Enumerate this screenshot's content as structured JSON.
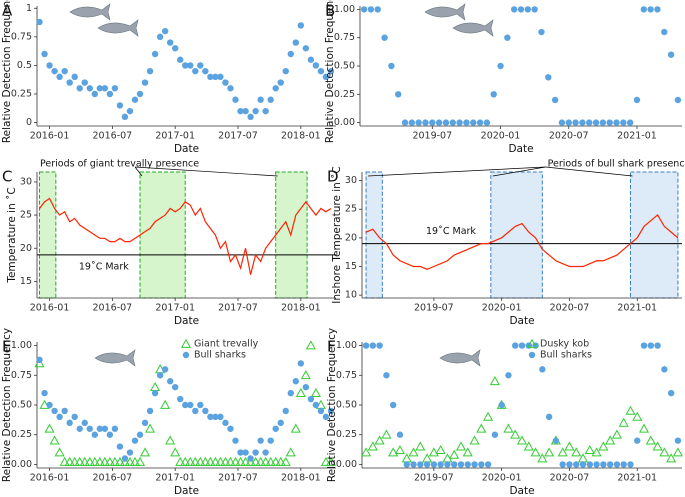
{
  "chart_data": [
    {
      "type": "scatter",
      "panel_label": "A",
      "x_label": "Date",
      "y_label": "Relative Detection Frequency",
      "color": "#5ba3e0",
      "marker": "circle",
      "x": [
        2015.92,
        2015.96,
        2016.0,
        2016.04,
        2016.08,
        2016.12,
        2016.16,
        2016.2,
        2016.24,
        2016.28,
        2016.32,
        2016.36,
        2016.4,
        2016.44,
        2016.48,
        2016.52,
        2016.56,
        2016.6,
        2016.64,
        2016.68,
        2016.72,
        2016.76,
        2016.8,
        2016.84,
        2016.88,
        2016.92,
        2016.96,
        2017.0,
        2017.04,
        2017.08,
        2017.12,
        2017.16,
        2017.2,
        2017.24,
        2017.28,
        2017.32,
        2017.36,
        2017.4,
        2017.44,
        2017.48,
        2017.52,
        2017.56,
        2017.6,
        2017.64,
        2017.68,
        2017.72,
        2017.76,
        2017.8,
        2017.84,
        2017.88,
        2017.92,
        2017.96,
        2018.0,
        2018.04,
        2018.08,
        2018.12,
        2018.16,
        2018.2,
        2018.24
      ],
      "values": [
        0.88,
        0.6,
        0.5,
        0.45,
        0.4,
        0.45,
        0.35,
        0.4,
        0.3,
        0.35,
        0.3,
        0.25,
        0.3,
        0.3,
        0.25,
        0.3,
        0.15,
        0.05,
        0.1,
        0.2,
        0.25,
        0.35,
        0.45,
        0.6,
        0.75,
        0.8,
        0.7,
        0.65,
        0.55,
        0.5,
        0.5,
        0.45,
        0.5,
        0.45,
        0.4,
        0.4,
        0.4,
        0.35,
        0.3,
        0.2,
        0.1,
        0.1,
        0.05,
        0.1,
        0.2,
        0.1,
        0.2,
        0.3,
        0.35,
        0.45,
        0.6,
        0.7,
        0.85,
        0.65,
        0.55,
        0.5,
        0.45,
        0.4,
        0.45
      ],
      "xlim": [
        2015.9,
        2018.28
      ],
      "xticks": [
        {
          "value": 2016.0,
          "label": "2016-01"
        },
        {
          "value": 2016.5,
          "label": "2016-07"
        },
        {
          "value": 2017.0,
          "label": "2017-01"
        },
        {
          "value": 2017.5,
          "label": "2017-07"
        },
        {
          "value": 2018.0,
          "label": "2018-01"
        }
      ],
      "ylim": [
        -0.03,
        1.02
      ],
      "yticks": [
        0,
        0.25,
        0.5,
        0.75,
        1
      ]
    },
    {
      "type": "scatter",
      "panel_label": "B",
      "x_label": "Date",
      "y_label": "Relative Detection Frequency",
      "color": "#5ba3e0",
      "marker": "circle",
      "x": [
        2019.0,
        2019.05,
        2019.1,
        2019.15,
        2019.2,
        2019.25,
        2019.3,
        2019.35,
        2019.4,
        2019.45,
        2019.5,
        2019.55,
        2019.6,
        2019.65,
        2019.7,
        2019.75,
        2019.8,
        2019.85,
        2019.9,
        2019.95,
        2020.0,
        2020.05,
        2020.1,
        2020.15,
        2020.2,
        2020.25,
        2020.3,
        2020.35,
        2020.4,
        2020.45,
        2020.5,
        2020.55,
        2020.6,
        2020.65,
        2020.7,
        2020.75,
        2020.8,
        2020.85,
        2020.9,
        2020.95,
        2021.0,
        2021.05,
        2021.1,
        2021.15,
        2021.2,
        2021.25,
        2021.3
      ],
      "values": [
        1,
        1,
        1,
        0.75,
        0.5,
        0.25,
        0,
        0,
        0,
        0,
        0,
        0,
        0,
        0,
        0,
        0,
        0,
        0,
        0,
        0.25,
        0.5,
        0.75,
        1,
        1,
        1,
        1,
        0.8,
        0.4,
        0.2,
        0,
        0,
        0,
        0,
        0,
        0,
        0,
        0,
        0,
        0,
        0,
        0.2,
        1,
        1,
        1,
        0.8,
        0.6,
        0.2
      ],
      "xlim": [
        2018.97,
        2021.33
      ],
      "xticks": [
        {
          "value": 2019.5,
          "label": "2019-07"
        },
        {
          "value": 2020.0,
          "label": "2020-01"
        },
        {
          "value": 2020.5,
          "label": "2020-07"
        },
        {
          "value": 2021.0,
          "label": "2021-01"
        }
      ],
      "ylim": [
        -0.03,
        1.03
      ],
      "yticks": [
        {
          "value": 0,
          "label": "0.00"
        },
        0.25,
        {
          "value": 0.5,
          "label": "0.50"
        },
        0.75,
        {
          "value": 1,
          "label": "1.00"
        }
      ]
    },
    {
      "type": "line",
      "panel_label": "C",
      "x_label": "Date",
      "y_label": "Temperature in ˚C",
      "color": "#ff2200",
      "annotations": [
        "Periods of giant trevally presence",
        "19˚C Mark"
      ],
      "spans": [
        [
          2015.92,
          2016.05
        ],
        [
          2016.72,
          2017.08
        ],
        [
          2017.8,
          2018.05
        ]
      ],
      "span_color": "#d6f5cc",
      "span_edge": "#22aa22",
      "hline": 19,
      "x": [
        2015.92,
        2015.96,
        2016.0,
        2016.04,
        2016.08,
        2016.12,
        2016.16,
        2016.2,
        2016.24,
        2016.28,
        2016.32,
        2016.36,
        2016.4,
        2016.44,
        2016.48,
        2016.52,
        2016.56,
        2016.6,
        2016.64,
        2016.68,
        2016.72,
        2016.76,
        2016.8,
        2016.84,
        2016.88,
        2016.92,
        2016.96,
        2017.0,
        2017.04,
        2017.08,
        2017.12,
        2017.16,
        2017.2,
        2017.24,
        2017.28,
        2017.32,
        2017.36,
        2017.4,
        2017.44,
        2017.48,
        2017.52,
        2017.56,
        2017.6,
        2017.64,
        2017.68,
        2017.72,
        2017.76,
        2017.8,
        2017.84,
        2017.88,
        2017.92,
        2017.96,
        2018.0,
        2018.04,
        2018.08,
        2018.12,
        2018.16,
        2018.2,
        2018.24
      ],
      "values": [
        26,
        27,
        27.5,
        26,
        25,
        25.5,
        24,
        24.5,
        23.5,
        23,
        22.5,
        22,
        21.5,
        21.5,
        21,
        21,
        21.5,
        21,
        21,
        21.5,
        22,
        22.5,
        23,
        24,
        24.5,
        25,
        26,
        25.5,
        26,
        27,
        26.5,
        25,
        26,
        24,
        23,
        22,
        20,
        21,
        18,
        19,
        17,
        20,
        16,
        19,
        18,
        20,
        21,
        22,
        23,
        24,
        22,
        25,
        26,
        27,
        26,
        25,
        26,
        25.5,
        26
      ],
      "xlim": [
        2015.9,
        2018.28
      ],
      "xticks": [
        {
          "value": 2016.0,
          "label": "2016-01"
        },
        {
          "value": 2016.5,
          "label": "2016-07"
        },
        {
          "value": 2017.0,
          "label": "2017-01"
        },
        {
          "value": 2017.5,
          "label": "2017-07"
        },
        {
          "value": 2018.0,
          "label": "2018-01"
        }
      ],
      "ylim": [
        12.5,
        31.5
      ],
      "yticks": [
        15,
        20,
        25,
        30
      ]
    },
    {
      "type": "line",
      "panel_label": "D",
      "x_label": "Date",
      "y_label": "Inshore Temperature in ˚C",
      "color": "#ff2200",
      "annotations": [
        "Periods of bull shark presence",
        "19˚C Mark"
      ],
      "spans": [
        [
          2019.0,
          2019.12
        ],
        [
          2019.92,
          2020.3
        ],
        [
          2020.95,
          2021.3
        ]
      ],
      "span_color": "#dcebf7",
      "span_edge": "#3a7fc0",
      "hline": 19,
      "x": [
        2019.0,
        2019.05,
        2019.1,
        2019.15,
        2019.2,
        2019.25,
        2019.3,
        2019.35,
        2019.4,
        2019.45,
        2019.5,
        2019.55,
        2019.6,
        2019.65,
        2019.7,
        2019.75,
        2019.8,
        2019.85,
        2019.9,
        2019.95,
        2020.0,
        2020.05,
        2020.1,
        2020.15,
        2020.2,
        2020.25,
        2020.3,
        2020.35,
        2020.4,
        2020.45,
        2020.5,
        2020.55,
        2020.6,
        2020.65,
        2020.7,
        2020.75,
        2020.8,
        2020.85,
        2020.9,
        2020.95,
        2021.0,
        2021.05,
        2021.1,
        2021.15,
        2021.2,
        2021.25,
        2021.3
      ],
      "values": [
        21,
        21.5,
        20,
        19,
        17,
        16,
        15.5,
        15,
        15,
        14.5,
        15,
        15.5,
        16,
        17,
        17.5,
        18,
        18.5,
        19,
        19,
        19.5,
        20,
        21,
        22,
        22.5,
        21,
        20,
        18,
        17,
        16,
        15.5,
        15,
        15,
        15,
        15.5,
        16,
        16,
        16.5,
        17,
        18,
        19,
        20,
        22,
        23,
        24,
        22,
        21,
        20
      ],
      "xlim": [
        2018.97,
        2021.33
      ],
      "xticks": [
        {
          "value": 2019.5,
          "label": "2019-07"
        },
        {
          "value": 2020.0,
          "label": "2020-01"
        },
        {
          "value": 2020.5,
          "label": "2020-07"
        },
        {
          "value": 2021.0,
          "label": "2021-01"
        }
      ],
      "ylim": [
        9.5,
        31.5
      ],
      "yticks": [
        10,
        15,
        20,
        25,
        30
      ]
    },
    {
      "type": "scatter",
      "panel_label": "E",
      "x_label": "Date",
      "y_label": "Relative Detection Frequency",
      "legend": "top-right",
      "x": [
        2015.92,
        2015.96,
        2016.0,
        2016.04,
        2016.08,
        2016.12,
        2016.16,
        2016.2,
        2016.24,
        2016.28,
        2016.32,
        2016.36,
        2016.4,
        2016.44,
        2016.48,
        2016.52,
        2016.56,
        2016.6,
        2016.64,
        2016.68,
        2016.72,
        2016.76,
        2016.8,
        2016.84,
        2016.88,
        2016.92,
        2016.96,
        2017.0,
        2017.04,
        2017.08,
        2017.12,
        2017.16,
        2017.2,
        2017.24,
        2017.28,
        2017.32,
        2017.36,
        2017.4,
        2017.44,
        2017.48,
        2017.52,
        2017.56,
        2017.6,
        2017.64,
        2017.68,
        2017.72,
        2017.76,
        2017.8,
        2017.84,
        2017.88,
        2017.92,
        2017.96,
        2018.0,
        2018.04,
        2018.08,
        2018.12,
        2018.16,
        2018.2,
        2018.24
      ],
      "series": [
        {
          "name": "Giant trevally",
          "color": "#33cc33",
          "marker": "triangle",
          "values": [
            0.85,
            0.5,
            0.3,
            0.2,
            0.1,
            0.02,
            0.02,
            0.02,
            0.02,
            0.02,
            0.02,
            0.02,
            0.02,
            0.02,
            0.02,
            0.02,
            0.02,
            0.02,
            0.02,
            0.02,
            0.02,
            0.1,
            0.3,
            0.65,
            0.8,
            0.5,
            0.2,
            0.1,
            0.02,
            0.02,
            0.02,
            0.02,
            0.02,
            0.02,
            0.02,
            0.02,
            0.02,
            0.02,
            0.02,
            0.02,
            0.02,
            0.02,
            0.02,
            0.02,
            0.02,
            0.02,
            0.02,
            0.02,
            0.02,
            0.02,
            0.1,
            0.3,
            0.6,
            0.75,
            1,
            0.6,
            0.5,
            0.02,
            0.02
          ]
        },
        {
          "name": "Bull sharks",
          "color": "#5ba3e0",
          "marker": "circle",
          "values": [
            0.88,
            0.6,
            0.5,
            0.45,
            0.4,
            0.45,
            0.35,
            0.4,
            0.3,
            0.35,
            0.3,
            0.25,
            0.3,
            0.3,
            0.25,
            0.3,
            0.15,
            0.05,
            0.1,
            0.2,
            0.25,
            0.35,
            0.45,
            0.6,
            0.75,
            0.8,
            0.7,
            0.65,
            0.55,
            0.5,
            0.5,
            0.45,
            0.5,
            0.45,
            0.4,
            0.4,
            0.4,
            0.35,
            0.3,
            0.2,
            0.1,
            0.1,
            0.05,
            0.1,
            0.2,
            0.1,
            0.2,
            0.3,
            0.35,
            0.45,
            0.6,
            0.7,
            0.85,
            0.65,
            0.55,
            0.5,
            0.45,
            0.4,
            0.45
          ]
        }
      ],
      "xlim": [
        2015.9,
        2018.28
      ],
      "xticks": [
        {
          "value": 2016.0,
          "label": "2016-01"
        },
        {
          "value": 2016.5,
          "label": "2016-07"
        },
        {
          "value": 2017.0,
          "label": "2017-01"
        },
        {
          "value": 2017.5,
          "label": "2017-07"
        },
        {
          "value": 2018.0,
          "label": "2018-01"
        }
      ],
      "ylim": [
        -0.03,
        1.03
      ],
      "yticks": [
        {
          "value": 0,
          "label": "0.00"
        },
        0.25,
        {
          "value": 0.5,
          "label": "0.50"
        },
        0.75,
        {
          "value": 1,
          "label": "1.00"
        }
      ]
    },
    {
      "type": "scatter",
      "panel_label": "F",
      "x_label": "Date",
      "y_label": "Relative Detection Frequency",
      "legend": "top-right",
      "x": [
        2019.0,
        2019.05,
        2019.1,
        2019.15,
        2019.2,
        2019.25,
        2019.3,
        2019.35,
        2019.4,
        2019.45,
        2019.5,
        2019.55,
        2019.6,
        2019.65,
        2019.7,
        2019.75,
        2019.8,
        2019.85,
        2019.9,
        2019.95,
        2020.0,
        2020.05,
        2020.1,
        2020.15,
        2020.2,
        2020.25,
        2020.3,
        2020.35,
        2020.4,
        2020.45,
        2020.5,
        2020.55,
        2020.6,
        2020.65,
        2020.7,
        2020.75,
        2020.8,
        2020.85,
        2020.9,
        2020.95,
        2021.0,
        2021.05,
        2021.1,
        2021.15,
        2021.2,
        2021.25,
        2021.3
      ],
      "series": [
        {
          "name": "Dusky kob",
          "color": "#33cc33",
          "marker": "triangle",
          "values": [
            0.1,
            0.15,
            0.2,
            0.25,
            0.1,
            0.12,
            0.05,
            0.1,
            0.15,
            0.05,
            0.1,
            0.12,
            0.05,
            0.08,
            0.15,
            0.1,
            0.2,
            0.3,
            0.4,
            0.7,
            0.5,
            0.3,
            0.25,
            0.2,
            0.15,
            0.1,
            0.05,
            0.1,
            0.2,
            0.1,
            0.15,
            0.1,
            0.05,
            0.12,
            0.1,
            0.15,
            0.2,
            0.25,
            0.35,
            0.45,
            0.4,
            0.3,
            0.2,
            0.15,
            0.1,
            0.05,
            0.1
          ]
        },
        {
          "name": "Bull sharks",
          "color": "#5ba3e0",
          "marker": "circle",
          "values": [
            1,
            1,
            1,
            0.75,
            0.5,
            0.25,
            0,
            0,
            0,
            0,
            0,
            0,
            0,
            0,
            0,
            0,
            0,
            0,
            0,
            0.25,
            0.5,
            0.75,
            1,
            1,
            1,
            1,
            0.8,
            0.4,
            0.2,
            0,
            0,
            0,
            0,
            0,
            0,
            0,
            0,
            0,
            0,
            0,
            0.2,
            1,
            1,
            1,
            0.8,
            0.6,
            0.2
          ]
        }
      ],
      "xlim": [
        2018.97,
        2021.33
      ],
      "xticks": [
        {
          "value": 2019.5,
          "label": "2019-07"
        },
        {
          "value": 2020.0,
          "label": "2020-01"
        },
        {
          "value": 2020.5,
          "label": "2020-07"
        },
        {
          "value": 2021.0,
          "label": "2021-01"
        }
      ],
      "ylim": [
        -0.03,
        1.03
      ],
      "yticks": [
        {
          "value": 0,
          "label": "0.00"
        },
        0.25,
        {
          "value": 0.5,
          "label": "0.50"
        },
        0.75,
        {
          "value": 1,
          "label": "1.00"
        }
      ]
    }
  ]
}
